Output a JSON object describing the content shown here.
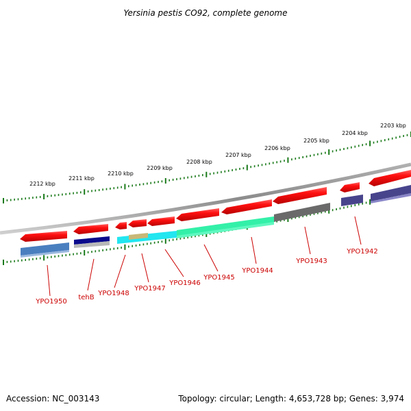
{
  "title": "Yersinia pestis CO92, complete genome",
  "footer": {
    "accession": "Accession: NC_003143",
    "summary": "Topology: circular; Length: 4,653,728 bp; Genes: 3,974"
  },
  "scale": {
    "labels": [
      "2212 kbp",
      "2211 kbp",
      "2210 kbp",
      "2209 kbp",
      "2208 kbp",
      "2207 kbp",
      "2206 kbp",
      "2205 kbp",
      "2204 kbp",
      "2203 kbp"
    ]
  },
  "genes": [
    {
      "name": "YPO1950"
    },
    {
      "name": "tehB"
    },
    {
      "name": "YPO1948"
    },
    {
      "name": "YPO1947"
    },
    {
      "name": "YPO1946"
    },
    {
      "name": "YPO1945"
    },
    {
      "name": "YPO1944"
    },
    {
      "name": "YPO1943"
    },
    {
      "name": "YPO1942"
    }
  ],
  "colors": {
    "backbone": "#8c8c8c",
    "gene_arrow": "#e8000b",
    "scale_tick": "#1a7a1a",
    "label": "#cc0000",
    "feature_steelblue": "#4a7fbf",
    "feature_navy": "#0a0a8c",
    "feature_cyan": "#22e6f0",
    "feature_tan": "#c8b878",
    "feature_spring": "#33f0a8",
    "feature_gray": "#6a6a6a",
    "feature_slate": "#48448c"
  }
}
